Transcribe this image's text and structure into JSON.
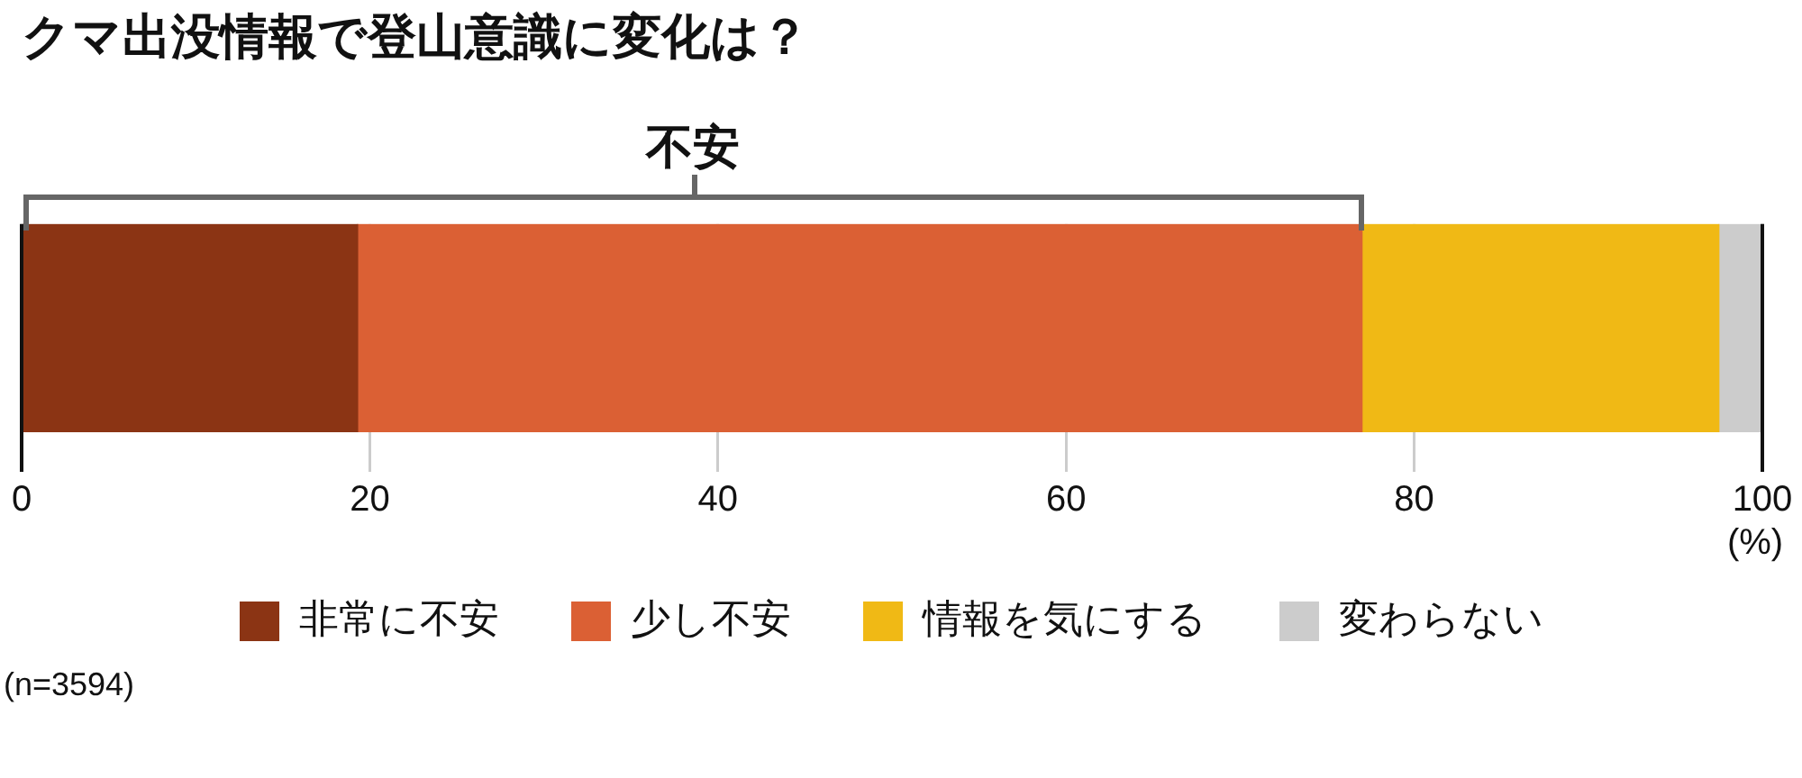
{
  "chart_data": {
    "type": "bar",
    "orientation": "horizontal",
    "stacked": true,
    "title": "クマ出没情報で登山意識に変化は？",
    "xlabel": "(%)",
    "categories": [
      null
    ],
    "series": [
      {
        "name": "非常に不安",
        "color": "#8b3414",
        "values": [
          19.3
        ]
      },
      {
        "name": "少し不安",
        "color": "#db6034",
        "values": [
          57.7
        ]
      },
      {
        "name": "情報を気にする",
        "color": "#f0b915",
        "values": [
          20.5
        ]
      },
      {
        "name": "変わらない",
        "color": "#cccccc",
        "values": [
          2.5
        ]
      }
    ],
    "xlim": [
      0,
      100
    ],
    "xticks": [
      0,
      20,
      40,
      60,
      80,
      100
    ],
    "grid": "x",
    "legend": "bottom",
    "annotations": [
      "不安",
      "(n=3594)"
    ]
  }
}
